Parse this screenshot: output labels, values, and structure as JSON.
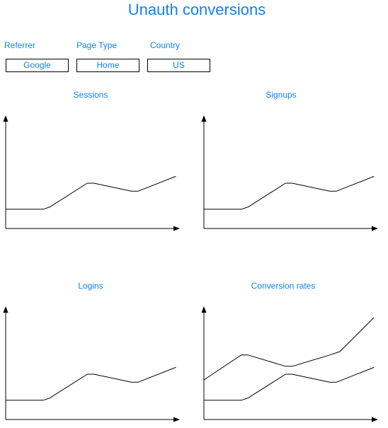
{
  "title": "Unauth conversions",
  "filters": [
    {
      "label": "Referrer",
      "value": "Google"
    },
    {
      "label": "Page Type",
      "value": "Home"
    },
    {
      "label": "Country",
      "value": "US"
    }
  ],
  "colors": {
    "accent": "#1281ef",
    "line": "#000000"
  },
  "chart_data": [
    {
      "type": "line",
      "title": "Sessions",
      "xlabel": "",
      "ylabel": "",
      "series": [
        {
          "values": [
            [
              0,
              0.17
            ],
            [
              0.06,
              0.17
            ],
            [
              0.22,
              0.17
            ],
            [
              0.26,
              0.19
            ],
            [
              0.48,
              0.4
            ],
            [
              0.52,
              0.4
            ],
            [
              0.74,
              0.33
            ],
            [
              0.78,
              0.33
            ],
            [
              1.0,
              0.46
            ]
          ]
        }
      ]
    },
    {
      "type": "line",
      "title": "Signups",
      "xlabel": "",
      "ylabel": "",
      "series": [
        {
          "values": [
            [
              0,
              0.17
            ],
            [
              0.06,
              0.17
            ],
            [
              0.22,
              0.17
            ],
            [
              0.26,
              0.19
            ],
            [
              0.48,
              0.4
            ],
            [
              0.52,
              0.4
            ],
            [
              0.74,
              0.33
            ],
            [
              0.78,
              0.33
            ],
            [
              1.0,
              0.46
            ]
          ]
        }
      ]
    },
    {
      "type": "line",
      "title": "Logins",
      "xlabel": "",
      "ylabel": "",
      "series": [
        {
          "values": [
            [
              0,
              0.17
            ],
            [
              0.06,
              0.17
            ],
            [
              0.22,
              0.17
            ],
            [
              0.26,
              0.19
            ],
            [
              0.48,
              0.4
            ],
            [
              0.52,
              0.4
            ],
            [
              0.74,
              0.33
            ],
            [
              0.78,
              0.33
            ],
            [
              1.0,
              0.46
            ]
          ]
        }
      ]
    },
    {
      "type": "line",
      "title": "Conversion rates",
      "xlabel": "",
      "ylabel": "",
      "series": [
        {
          "values": [
            [
              0,
              0.17
            ],
            [
              0.06,
              0.17
            ],
            [
              0.22,
              0.17
            ],
            [
              0.26,
              0.19
            ],
            [
              0.48,
              0.4
            ],
            [
              0.52,
              0.4
            ],
            [
              0.74,
              0.33
            ],
            [
              0.78,
              0.33
            ],
            [
              1.0,
              0.46
            ]
          ]
        },
        {
          "values": [
            [
              0,
              0.35
            ],
            [
              0.22,
              0.57
            ],
            [
              0.26,
              0.57
            ],
            [
              0.48,
              0.47
            ],
            [
              0.52,
              0.47
            ],
            [
              0.74,
              0.57
            ],
            [
              0.8,
              0.6
            ],
            [
              1.0,
              0.9
            ]
          ]
        }
      ]
    }
  ]
}
